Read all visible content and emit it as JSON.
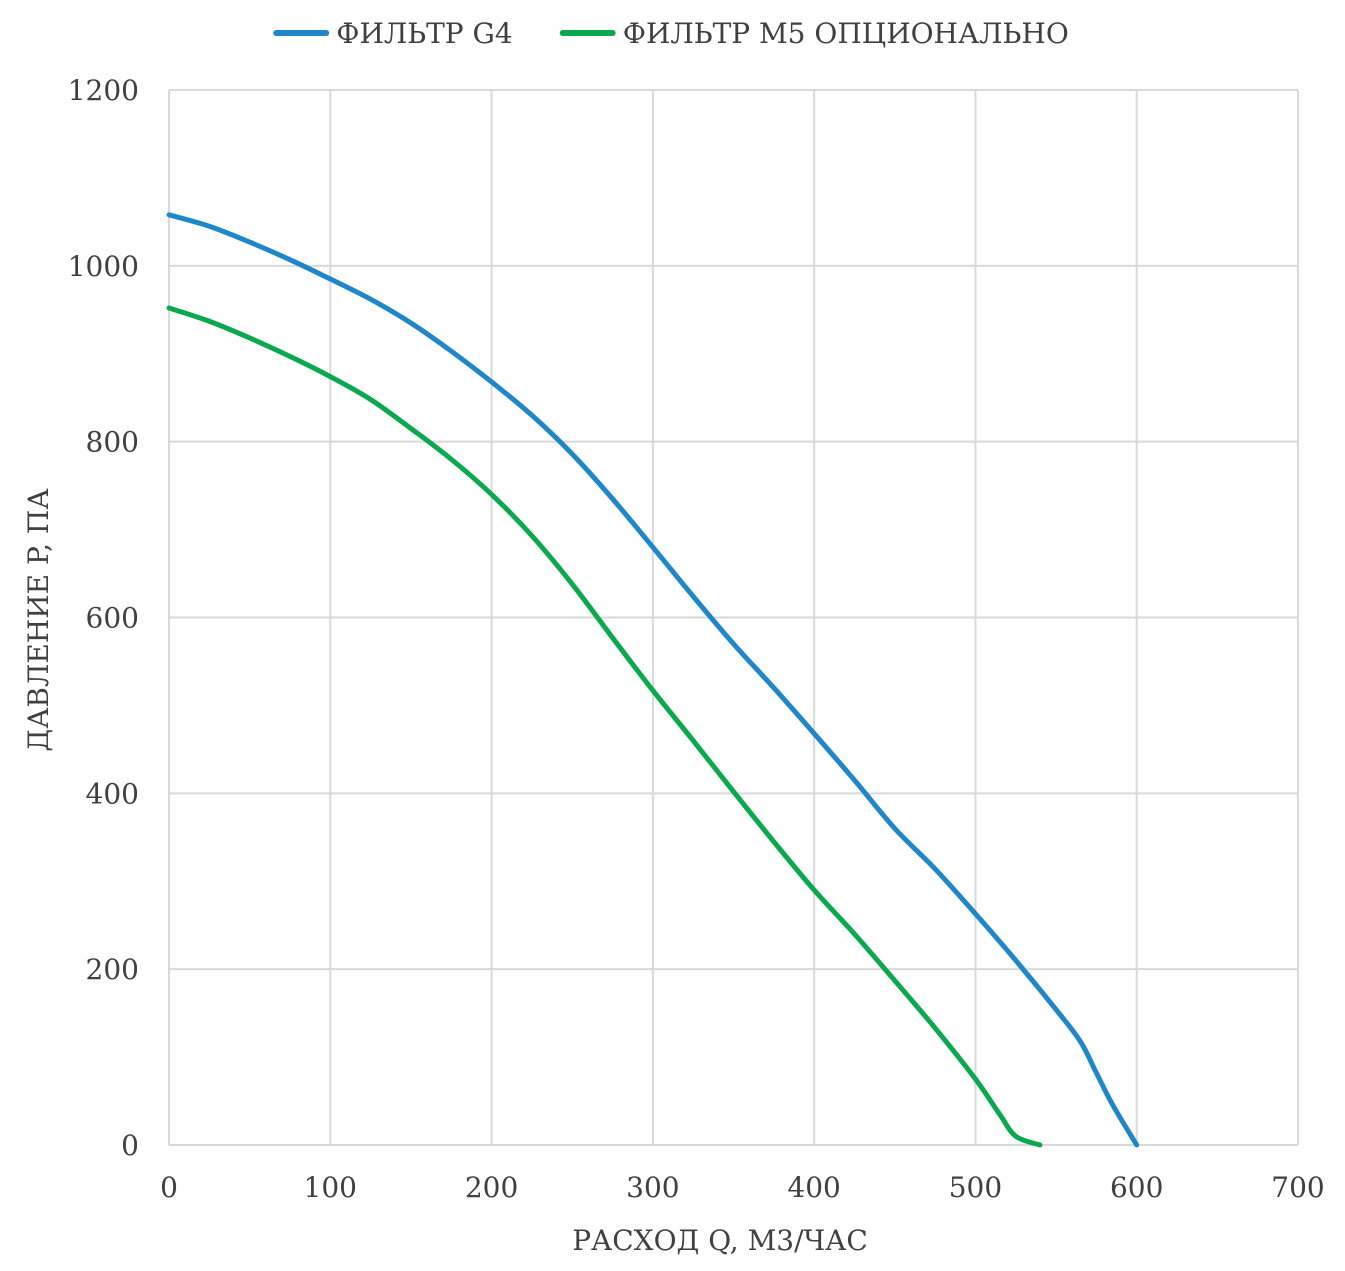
{
  "chart_data": {
    "type": "line",
    "title": "",
    "xlabel": "РАСХОД Q, М3/ЧАС",
    "ylabel": "ДАВЛЕНИЕ P, ПА",
    "xlim": [
      0,
      700
    ],
    "ylim": [
      0,
      1200
    ],
    "x_ticks": [
      "0",
      "100",
      "200",
      "300",
      "400",
      "500",
      "600",
      "700"
    ],
    "y_ticks": [
      "0",
      "200",
      "400",
      "600",
      "800",
      "1000",
      "1200"
    ],
    "grid": true,
    "legend_position": "top-center",
    "series": [
      {
        "name": "ФИЛЬТР G4",
        "color": "#1f87c9",
        "points": [
          [
            0,
            1058
          ],
          [
            25,
            1045
          ],
          [
            50,
            1027
          ],
          [
            75,
            1007
          ],
          [
            100,
            985
          ],
          [
            125,
            962
          ],
          [
            150,
            935
          ],
          [
            175,
            903
          ],
          [
            200,
            868
          ],
          [
            225,
            830
          ],
          [
            250,
            786
          ],
          [
            275,
            735
          ],
          [
            300,
            680
          ],
          [
            325,
            624
          ],
          [
            350,
            570
          ],
          [
            375,
            520
          ],
          [
            400,
            468
          ],
          [
            425,
            415
          ],
          [
            450,
            360
          ],
          [
            475,
            314
          ],
          [
            500,
            263
          ],
          [
            525,
            210
          ],
          [
            550,
            154
          ],
          [
            565,
            118
          ],
          [
            575,
            82
          ],
          [
            585,
            46
          ],
          [
            600,
            0
          ]
        ]
      },
      {
        "name": "ФИЛЬТР М5 ОПЦИОНАЛЬНО",
        "color": "#0aa84f",
        "points": [
          [
            0,
            952
          ],
          [
            25,
            937
          ],
          [
            50,
            918
          ],
          [
            75,
            897
          ],
          [
            100,
            874
          ],
          [
            125,
            848
          ],
          [
            150,
            815
          ],
          [
            175,
            780
          ],
          [
            200,
            740
          ],
          [
            225,
            693
          ],
          [
            250,
            638
          ],
          [
            275,
            577
          ],
          [
            300,
            517
          ],
          [
            325,
            460
          ],
          [
            350,
            402
          ],
          [
            375,
            345
          ],
          [
            400,
            290
          ],
          [
            425,
            240
          ],
          [
            450,
            187
          ],
          [
            475,
            133
          ],
          [
            500,
            75
          ],
          [
            515,
            35
          ],
          [
            525,
            10
          ],
          [
            540,
            0
          ]
        ]
      }
    ]
  }
}
